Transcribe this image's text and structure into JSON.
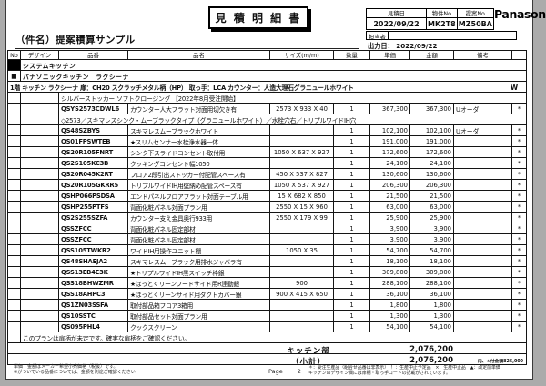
{
  "header": {
    "title": "見 積 明 細 書",
    "brand": "Panasonic",
    "subject": "（件名）提案積算サンプル",
    "meta": {
      "quote_date_label": "見積日",
      "quote_date": "2022/09/22",
      "property_no_label": "物件No",
      "property_no": "MK2T8",
      "proposal_no_label": "提案No",
      "proposal_no": "MZ50BA",
      "staff_label": "担当者",
      "staff_value": "",
      "output_date_label": "出力日：",
      "output_date": "2022/09/22"
    }
  },
  "table": {
    "columns": [
      "No",
      "デザイン",
      "品番",
      "品名",
      "サイズ(m/m)",
      "数量",
      "単価",
      "金額",
      "備考"
    ],
    "rows": [
      {
        "type": "section_black",
        "text": "システムキッチン"
      },
      {
        "type": "section_square",
        "square": "■",
        "text": "パナソニックキッチン　ラクシーナ"
      },
      {
        "type": "plan",
        "text": "1階 キッチン ラクシーナ 扉：CH20 スクラッチメタル柄（HP） 取っ手：LCA カウンター：人造大理石グラニュールホワイト",
        "right": "W"
      },
      {
        "type": "note_pn",
        "text": "シルバーストッカー ソフトクロージング 【2022年8月受注開始】"
      },
      {
        "type": "item",
        "pn": "QSYS2573CDWL6",
        "name": "カウンター人大フラット対面用切欠き有",
        "size": "2573 X 933 X 40",
        "qty": "1",
        "unit_price": "367,300",
        "amount": "367,300",
        "remark": "Uオーダ",
        "mark": "*"
      },
      {
        "type": "note_pn",
        "text": "◇2573／スキマレスシンク・ムーブラックタイプ（グラニュールホワイト）／水栓穴右／トリプルワイドIH穴"
      },
      {
        "type": "item",
        "pn": "QS48SZBYS",
        "name": "スキマレスムーブラックホワイト",
        "size": "",
        "qty": "1",
        "unit_price": "102,100",
        "amount": "102,100",
        "remark": "Uオーダ",
        "mark": "*"
      },
      {
        "type": "item",
        "pn": "QS01FPSWTEB",
        "name": "★スリムセンサー水栓浄水器一体",
        "size": "",
        "qty": "1",
        "unit_price": "191,000",
        "amount": "191,000",
        "remark": "",
        "mark": "*"
      },
      {
        "type": "item",
        "pn": "QS20R105FNRT",
        "name": "シンク下スライドコンセント取付用",
        "size": "1050 X 637 X 927",
        "qty": "1",
        "unit_price": "172,600",
        "amount": "172,600",
        "remark": "",
        "mark": "*"
      },
      {
        "type": "item",
        "pn": "QS2S105KC3B",
        "name": "クッキングコンセント幅1050",
        "size": "",
        "qty": "1",
        "unit_price": "24,100",
        "amount": "24,100",
        "remark": "",
        "mark": "*"
      },
      {
        "type": "item",
        "pn": "QS20R045K2RT",
        "name": "フロア2段引出ストッカー付配管スペース有",
        "size": "450 X 537 X 827",
        "qty": "1",
        "unit_price": "130,600",
        "amount": "130,600",
        "remark": "",
        "mark": "*"
      },
      {
        "type": "item",
        "pn": "QS20R105GKRR5",
        "name": "トリプルワイドIH用壁納め配管スペース有",
        "size": "1050 X 537 X 927",
        "qty": "1",
        "unit_price": "206,300",
        "amount": "206,300",
        "remark": "",
        "mark": "*"
      },
      {
        "type": "item",
        "pn": "QSHP066PSDSA",
        "name": "エンドパネルフロアフラット対面テーブル用",
        "size": "15 X 682 X 850",
        "qty": "1",
        "unit_price": "21,500",
        "amount": "21,500",
        "remark": "",
        "mark": "*"
      },
      {
        "type": "item",
        "pn": "QSHP255PTFS",
        "name": "背面化粧パネル対面プラン用",
        "size": "2550 X 15 X 960",
        "qty": "1",
        "unit_price": "63,000",
        "amount": "63,000",
        "remark": "",
        "mark": "*"
      },
      {
        "type": "item",
        "pn": "QS2S255SZFA",
        "name": "カウンター支え金具奥行933用",
        "size": "2550 X 179 X 99",
        "qty": "1",
        "unit_price": "25,900",
        "amount": "25,900",
        "remark": "",
        "mark": "*"
      },
      {
        "type": "item",
        "pn": "QSSZFCC",
        "name": "背面化粧パネル固定部材",
        "size": "",
        "qty": "1",
        "unit_price": "3,900",
        "amount": "3,900",
        "remark": "",
        "mark": "*"
      },
      {
        "type": "item",
        "pn": "QSSZFCC",
        "name": "背面化粧パネル固定部材",
        "size": "",
        "qty": "1",
        "unit_price": "3,900",
        "amount": "3,900",
        "remark": "",
        "mark": "*"
      },
      {
        "type": "item",
        "pn": "QSS105TWKR2",
        "name": "ワイドIH用操作ユニット棚",
        "size": "1050 X 35",
        "qty": "1",
        "unit_price": "54,700",
        "amount": "54,700",
        "remark": "",
        "mark": "*"
      },
      {
        "type": "item",
        "pn": "QS48SHAEJA2",
        "name": "スキマレスムーブラック用排水ジャバラ有",
        "size": "",
        "qty": "1",
        "unit_price": "18,100",
        "amount": "18,100",
        "remark": "",
        "mark": "*"
      },
      {
        "type": "item",
        "pn": "QSS13EB4E3K",
        "name": "★トリプルワイドIH黒スイッチ枠銀",
        "size": "",
        "qty": "1",
        "unit_price": "309,800",
        "amount": "309,800",
        "remark": "",
        "mark": "*"
      },
      {
        "type": "item",
        "pn": "QSS18BHWZMR",
        "name": "★ほっとくリーンフードサイド用R連動銀",
        "size": "900",
        "qty": "1",
        "unit_price": "288,100",
        "amount": "288,100",
        "remark": "",
        "mark": "*"
      },
      {
        "type": "item",
        "pn": "QSS18AHPC3",
        "name": "★ほっとくリーンサイド用ダクトカバー銀",
        "size": "900 X 415 X 650",
        "qty": "1",
        "unit_price": "36,100",
        "amount": "36,100",
        "remark": "",
        "mark": "*"
      },
      {
        "type": "item",
        "pn": "QS1ZN03SSFA",
        "name": "取付部品箱フロア3箱用",
        "size": "",
        "qty": "1",
        "unit_price": "1,800",
        "amount": "1,800",
        "remark": "",
        "mark": "*"
      },
      {
        "type": "item",
        "pn": "QS10SSTC",
        "name": "取付部品セット対面プラン用",
        "size": "",
        "qty": "1",
        "unit_price": "1,300",
        "amount": "1,300",
        "remark": "",
        "mark": "*"
      },
      {
        "type": "item",
        "pn": "QS095PHL4",
        "name": "クックスクリーン",
        "size": "",
        "qty": "1",
        "unit_price": "54,100",
        "amount": "54,100",
        "remark": "",
        "mark": "*"
      },
      {
        "type": "note_design",
        "text": "このプランは扉柄が未定です。確実な扉柄をご確認ください。"
      },
      {
        "type": "total",
        "label": "キッチン部",
        "amount": "2,076,200"
      },
      {
        "type": "subtotal",
        "label": "（小計）",
        "amount": "2,076,200",
        "note": "内、★付金額825,000"
      }
    ]
  },
  "footer": {
    "left_line1": "単価・金額はメーカー希望小売価格（税抜）です。",
    "left_line2": "※がついている品番については、金額を別途ご確認ください",
    "page_label": "Page",
    "page_number": "2",
    "legend_line1": "＊：受注生産品（組合せ品番は非表示）　！：生産中止予定品　×：生産中止品　▲：改定前単価",
    "legend_line2": "キッチンのデザイン欄には扉柄・取っ手コードの記載がされています。"
  }
}
